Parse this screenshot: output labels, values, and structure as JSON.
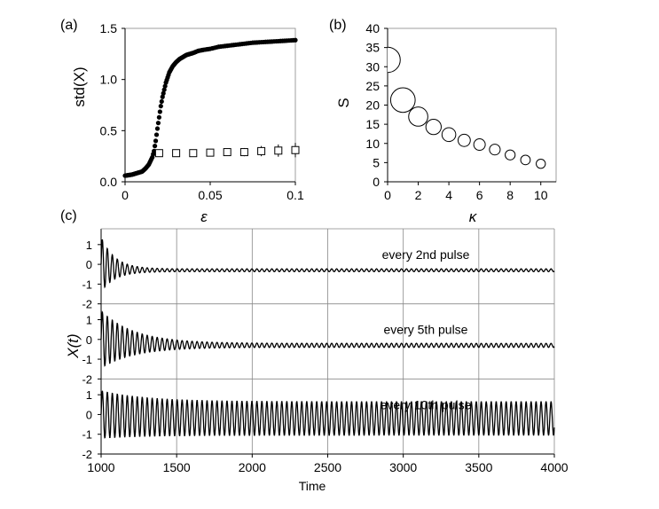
{
  "chart_data": [
    {
      "panel_label": "(a)",
      "type": "scatter",
      "xlabel": "ε",
      "ylabel": "std(X)",
      "xlim": [
        0,
        0.1
      ],
      "ylim": [
        0,
        1.5
      ],
      "x_ticks": [
        0,
        0.05,
        0.1
      ],
      "x_tick_labels": [
        "0",
        "0.05",
        "0.1"
      ],
      "y_ticks": [
        0,
        0.5,
        1,
        1.5
      ],
      "y_tick_labels": [
        "0.0",
        "0.5",
        "1.0",
        "1.5"
      ],
      "series": [
        {
          "marker": "filled-circle",
          "x": [
            0,
            0.002,
            0.004,
            0.006,
            0.008,
            0.01,
            0.012,
            0.014,
            0.016,
            0.017,
            0.018,
            0.019,
            0.02,
            0.021,
            0.022,
            0.023,
            0.024,
            0.025,
            0.026,
            0.027,
            0.028,
            0.029,
            0.03,
            0.032,
            0.034,
            0.036,
            0.038,
            0.04,
            0.043,
            0.046,
            0.05,
            0.055,
            0.06,
            0.065,
            0.07,
            0.075,
            0.08,
            0.085,
            0.09,
            0.095,
            0.1
          ],
          "y": [
            0.06,
            0.065,
            0.07,
            0.08,
            0.09,
            0.1,
            0.13,
            0.17,
            0.24,
            0.3,
            0.4,
            0.52,
            0.63,
            0.74,
            0.83,
            0.9,
            0.97,
            1.02,
            1.07,
            1.1,
            1.13,
            1.15,
            1.17,
            1.2,
            1.22,
            1.24,
            1.25,
            1.26,
            1.28,
            1.29,
            1.3,
            1.32,
            1.33,
            1.34,
            1.35,
            1.36,
            1.365,
            1.37,
            1.375,
            1.38,
            1.385
          ]
        },
        {
          "marker": "open-square-with-error-bar",
          "x": [
            0.02,
            0.03,
            0.04,
            0.05,
            0.06,
            0.07,
            0.08,
            0.09,
            0.1
          ],
          "y": [
            0.28,
            0.28,
            0.28,
            0.285,
            0.29,
            0.29,
            0.3,
            0.305,
            0.31
          ],
          "err": [
            0.02,
            0.02,
            0.025,
            0.03,
            0.035,
            0.04,
            0.05,
            0.06,
            0.07
          ]
        }
      ]
    },
    {
      "panel_label": "(b)",
      "type": "scatter",
      "xlabel": "κ",
      "ylabel": "S",
      "xlim": [
        0,
        11
      ],
      "ylim": [
        0,
        40
      ],
      "x_ticks": [
        0,
        2,
        4,
        6,
        8,
        10
      ],
      "x_tick_labels": [
        "0",
        "2",
        "4",
        "6",
        "8",
        "10"
      ],
      "y_ticks": [
        0,
        5,
        10,
        15,
        20,
        25,
        30,
        35,
        40
      ],
      "y_tick_labels": [
        "0",
        "5",
        "10",
        "15",
        "20",
        "25",
        "30",
        "35",
        "40"
      ],
      "series": [
        {
          "marker": "open-circle-sized",
          "x": [
            0,
            1,
            2,
            3,
            4,
            5,
            6,
            7,
            8,
            9,
            10
          ],
          "y": [
            31.8,
            21.3,
            17,
            14.3,
            12.3,
            10.8,
            9.7,
            8.4,
            7,
            5.7,
            4.7
          ],
          "size": [
            3.3,
            3.2,
            2.5,
            2.0,
            1.8,
            1.6,
            1.5,
            1.4,
            1.3,
            1.25,
            1.2
          ]
        }
      ]
    },
    {
      "panel_label": "(c)",
      "type": "line",
      "xlabel": "Time",
      "ylabel": "X(t)",
      "xlim": [
        1000,
        4000
      ],
      "x_ticks": [
        1000,
        1500,
        2000,
        2500,
        3000,
        3500,
        4000
      ],
      "x_tick_labels": [
        "1000",
        "1500",
        "2000",
        "2500",
        "3000",
        "3500",
        "4000"
      ],
      "y_ticks": [
        -2,
        -1,
        0,
        1
      ],
      "y_tick_labels": [
        "-2",
        "-1",
        "0",
        "1"
      ],
      "ylim_per_trace": [
        -2,
        1.8
      ],
      "oscillation_period": 33,
      "traces": [
        {
          "label": "every 2nd pulse",
          "initial_amplitude": 1.4,
          "decay_time": 90,
          "final_offset": -0.3,
          "final_amplitude": 0.07
        },
        {
          "label": "every 5th pulse",
          "initial_amplitude": 1.45,
          "decay_time": 220,
          "final_offset": -0.3,
          "final_amplitude": 0.1
        },
        {
          "label": "every 10th pulse",
          "initial_amplitude": 1.2,
          "decay_time": 300,
          "final_offset": -0.2,
          "final_amplitude": 0.85
        }
      ]
    }
  ]
}
